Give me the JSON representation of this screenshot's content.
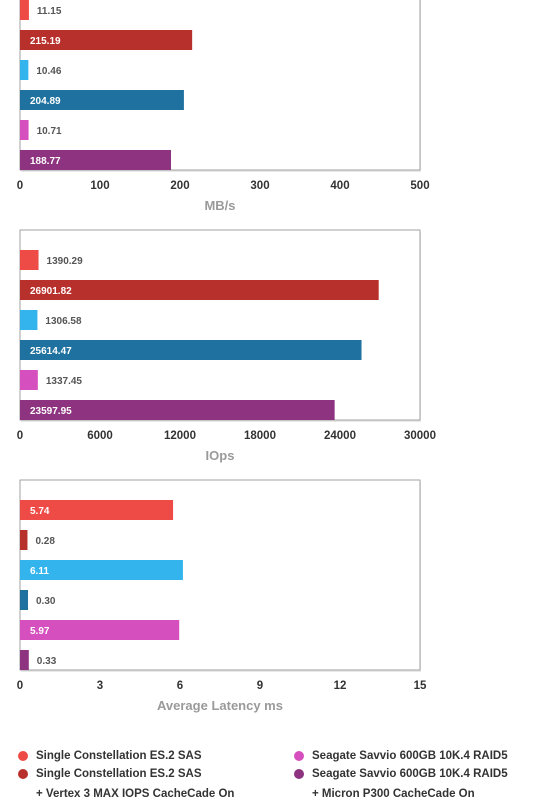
{
  "chart_data": [
    {
      "type": "bar",
      "orientation": "horizontal",
      "xlabel": "MB/s",
      "xticks": [
        "0",
        "100",
        "200",
        "300",
        "400",
        "500"
      ],
      "xlim": [
        0,
        500
      ],
      "bars": [
        {
          "value": 11.15,
          "label": "11.15",
          "color": "#ee4b46"
        },
        {
          "value": 215.19,
          "label": "215.19",
          "color": "#b8302b"
        },
        {
          "value": 10.46,
          "label": "10.46",
          "color": "#33b4ec"
        },
        {
          "value": 204.89,
          "label": "204.89",
          "color": "#1f72a0"
        },
        {
          "value": 10.71,
          "label": "10.71",
          "color": "#d64fbf"
        },
        {
          "value": 188.77,
          "label": "188.77",
          "color": "#8d337f"
        }
      ]
    },
    {
      "type": "bar",
      "orientation": "horizontal",
      "xlabel": "IOps",
      "xticks": [
        "0",
        "6000",
        "12000",
        "18000",
        "24000",
        "30000"
      ],
      "xlim": [
        0,
        30000
      ],
      "bars": [
        {
          "value": 1390.29,
          "label": "1390.29",
          "color": "#ee4b46"
        },
        {
          "value": 26901.82,
          "label": "26901.82",
          "color": "#b8302b"
        },
        {
          "value": 1306.58,
          "label": "1306.58",
          "color": "#33b4ec"
        },
        {
          "value": 25614.47,
          "label": "25614.47",
          "color": "#1f72a0"
        },
        {
          "value": 1337.45,
          "label": "1337.45",
          "color": "#d64fbf"
        },
        {
          "value": 23597.95,
          "label": "23597.95",
          "color": "#8d337f"
        }
      ]
    },
    {
      "type": "bar",
      "orientation": "horizontal",
      "xlabel": "Average Latency ms",
      "xticks": [
        "0",
        "3",
        "6",
        "9",
        "12",
        "15"
      ],
      "xlim": [
        0,
        15
      ],
      "bars": [
        {
          "value": 5.74,
          "label": "5.74",
          "color": "#ee4b46"
        },
        {
          "value": 0.28,
          "label": "0.28",
          "color": "#b8302b"
        },
        {
          "value": 6.11,
          "label": "6.11",
          "color": "#33b4ec"
        },
        {
          "value": 0.3,
          "label": "0.30",
          "color": "#1f72a0"
        },
        {
          "value": 5.97,
          "label": "5.97",
          "color": "#d64fbf"
        },
        {
          "value": 0.33,
          "label": "0.33",
          "color": "#8d337f"
        }
      ]
    }
  ],
  "legend": [
    {
      "line1": "Single Constellation ES.2 SAS",
      "line2": "",
      "color": "#ee4b46"
    },
    {
      "line1": "Single Constellation ES.2 SAS",
      "line2": "+ Vertex 3 MAX IOPS CacheCade On",
      "color": "#b8302b"
    },
    {
      "line1": "Seagate Savvio 600GB 10K.4 RAID5",
      "line2": "",
      "color": "#d64fbf"
    },
    {
      "line1": "Seagate Savvio 600GB 10K.4 RAID5",
      "line2": "+ Micron P300 CacheCade On",
      "color": "#8d337f"
    }
  ]
}
